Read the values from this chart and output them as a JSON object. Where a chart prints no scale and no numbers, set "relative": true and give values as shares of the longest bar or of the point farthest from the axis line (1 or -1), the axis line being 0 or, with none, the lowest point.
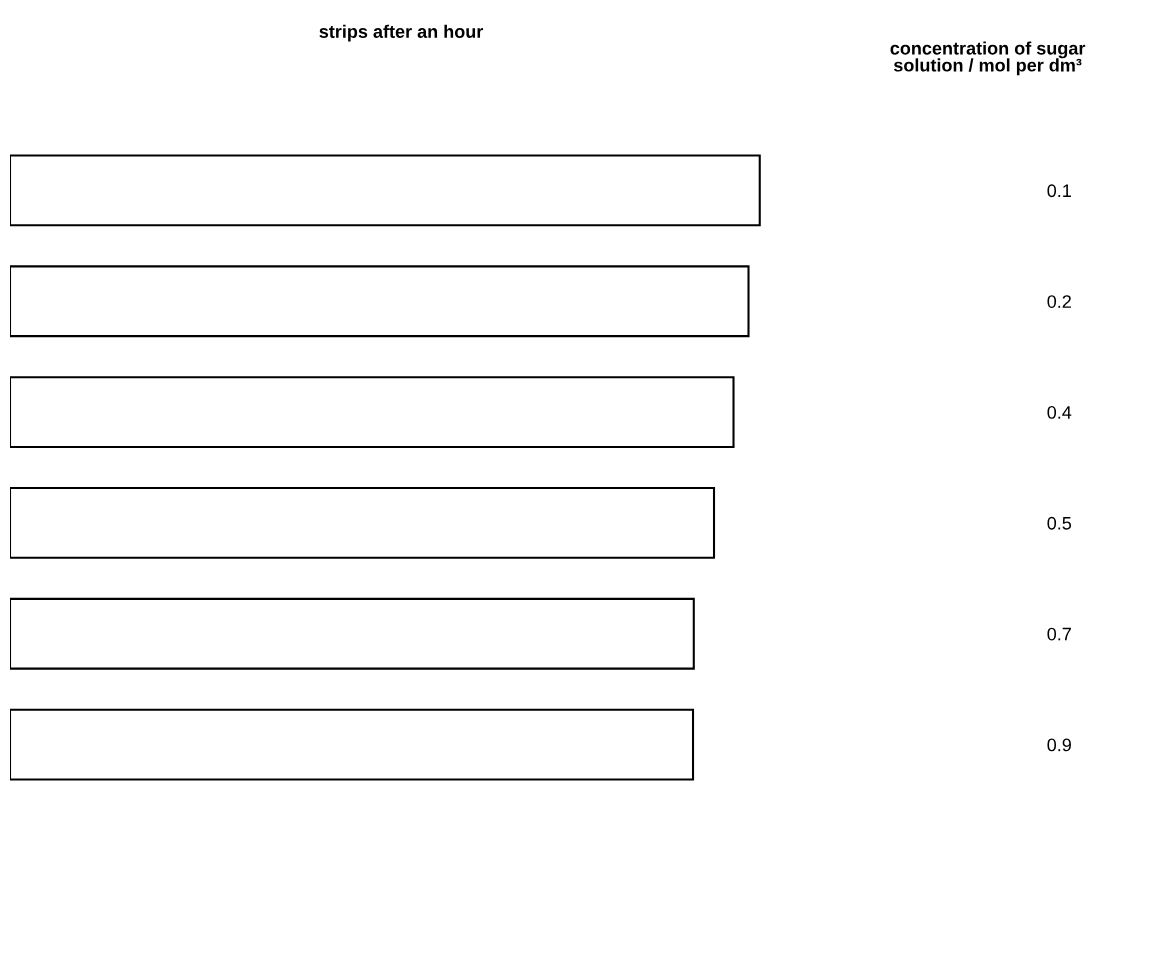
{
  "chart_data": {
    "type": "bar",
    "orientation": "horizontal",
    "relative": true,
    "title": "strips after an hour",
    "ylabel": "concentration of sugar\nsolution / mol per dm³",
    "categories": [
      "0.1",
      "0.2",
      "0.4",
      "0.5",
      "0.7",
      "0.9"
    ],
    "values": [
      1,
      0.985,
      0.965,
      0.939,
      0.912,
      0.911
    ],
    "color": "#ffffff",
    "grid": false,
    "legend": false
  }
}
